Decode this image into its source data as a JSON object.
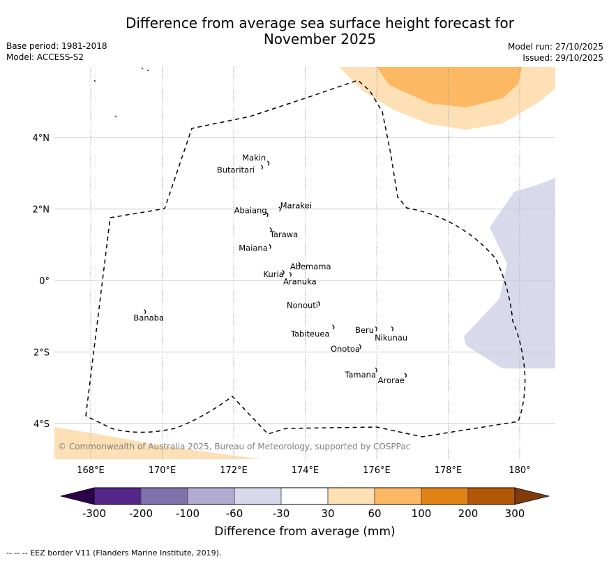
{
  "header": {
    "title_line1": "Difference from average sea surface height forecast for",
    "title_line2": "November 2025",
    "base_period": "Base period: 1981-2018",
    "model": "Model: ACCESS-S2",
    "model_run": "Model run: 27/10/2025",
    "issued": "Issued: 29/10/2025"
  },
  "map": {
    "lon_range": [
      167.0,
      181.0
    ],
    "lat_range": [
      -5.0,
      6.0
    ],
    "lon_ticks": [
      {
        "value": 168,
        "label": "168°E"
      },
      {
        "value": 170,
        "label": "170°E"
      },
      {
        "value": 172,
        "label": "172°E"
      },
      {
        "value": 174,
        "label": "174°E"
      },
      {
        "value": 176,
        "label": "176°E"
      },
      {
        "value": 178,
        "label": "178°E"
      },
      {
        "value": 180,
        "label": "180°"
      }
    ],
    "lat_ticks": [
      {
        "value": 4,
        "label": "4°N"
      },
      {
        "value": 2,
        "label": "2°N"
      },
      {
        "value": 0,
        "label": "0°"
      },
      {
        "value": -2,
        "label": "2°S"
      },
      {
        "value": -4,
        "label": "4°S"
      }
    ],
    "islands": [
      {
        "name": "Makin",
        "lon": 172.98,
        "lat": 3.28
      },
      {
        "name": "Butaritari",
        "lon": 172.8,
        "lat": 3.17
      },
      {
        "name": "Marakei",
        "lon": 173.3,
        "lat": 2.0
      },
      {
        "name": "Abaiang",
        "lon": 172.95,
        "lat": 1.84
      },
      {
        "name": "Tarawa",
        "lon": 173.05,
        "lat": 1.42
      },
      {
        "name": "Maiana",
        "lon": 173.03,
        "lat": 0.95
      },
      {
        "name": "Abemama",
        "lon": 173.85,
        "lat": 0.45
      },
      {
        "name": "Kuria",
        "lon": 173.4,
        "lat": 0.23
      },
      {
        "name": "Aranuka",
        "lon": 173.6,
        "lat": 0.17
      },
      {
        "name": "Banaba",
        "lon": 169.53,
        "lat": -0.87
      },
      {
        "name": "Nonouti",
        "lon": 174.4,
        "lat": -0.65
      },
      {
        "name": "Tabiteuea",
        "lon": 174.8,
        "lat": -1.3
      },
      {
        "name": "Beru",
        "lon": 176.0,
        "lat": -1.35
      },
      {
        "name": "Nikunau",
        "lon": 176.45,
        "lat": -1.35
      },
      {
        "name": "Onotoa",
        "lon": 175.55,
        "lat": -1.85
      },
      {
        "name": "Tamana",
        "lon": 176.0,
        "lat": -2.5
      },
      {
        "name": "Arorae",
        "lon": 176.82,
        "lat": -2.65
      }
    ],
    "copyright": "© Commonwealth of Australia 2025, Bureau of Meteorology, supported by COSPPac"
  },
  "colorbar": {
    "label": "Difference from average (mm)",
    "ticks": [
      "-300",
      "-200",
      "-100",
      "-60",
      "-30",
      "30",
      "60",
      "100",
      "200",
      "300"
    ],
    "under_color": "#2d004b",
    "over_color": "#7f3b08",
    "colors": [
      "#542788",
      "#8073ac",
      "#b2abd2",
      "#d8daeb",
      "#ffffff",
      "#fee0b6",
      "#fdb863",
      "#e08214",
      "#b35806"
    ]
  },
  "footer": {
    "eez_note": "--  --  -- EEZ border V11 (Flanders Marine Institute, 2019)."
  }
}
